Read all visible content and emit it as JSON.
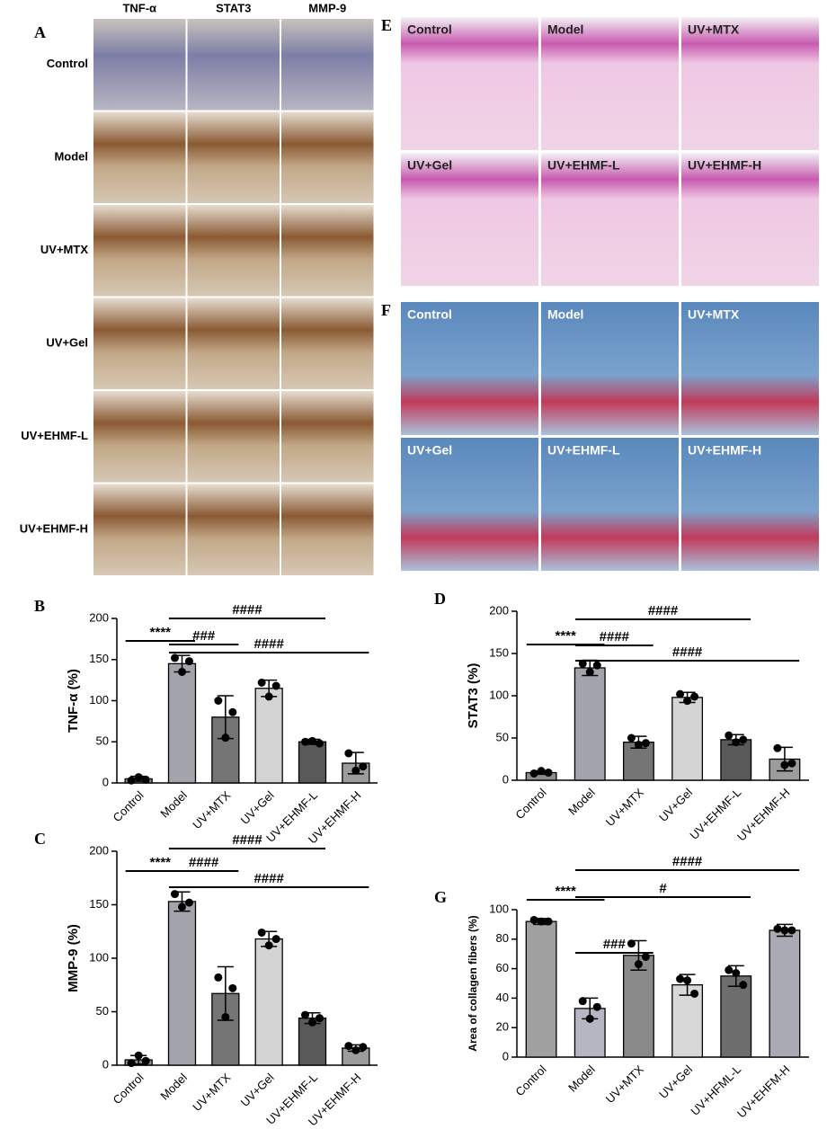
{
  "panels": {
    "A": {
      "label": "A",
      "columns": [
        "TNF-α",
        "STAT3",
        "MMP-9"
      ],
      "rows": [
        "Control",
        "Model",
        "UV+MTX",
        "UV+Gel",
        "UV+EHMF-L",
        "UV+EHMF-H"
      ]
    },
    "E": {
      "label": "E",
      "cells": [
        "Control",
        "Model",
        "UV+MTX",
        "UV+Gel",
        "UV+EHMF-L",
        "UV+EHMF-H"
      ]
    },
    "F": {
      "label": "F",
      "cells": [
        "Control",
        "Model",
        "UV+MTX",
        "UV+Gel",
        "UV+EHMF-L",
        "UV+EHMF-H"
      ]
    }
  },
  "chart_data": [
    {
      "type": "bar",
      "label": "B",
      "y_label": "TNF-α (%)",
      "categories": [
        "Control",
        "Model",
        "UV+MTX",
        "UV+Gel",
        "UV+EHMF-L",
        "UV+EHMF-H"
      ],
      "values": [
        5,
        145,
        80,
        115,
        50,
        24
      ],
      "errors": [
        3,
        10,
        26,
        10,
        3,
        13
      ],
      "points": [
        [
          3,
          7,
          4
        ],
        [
          152,
          135,
          148
        ],
        [
          100,
          55,
          86
        ],
        [
          122,
          105,
          118
        ],
        [
          50,
          51,
          48
        ],
        [
          36,
          15,
          20
        ]
      ],
      "colors": [
        "#8c8c8c",
        "#a3a3ab",
        "#757575",
        "#d4d4d4",
        "#595959",
        "#9c9c9c"
      ],
      "ylim": [
        0,
        200
      ],
      "yticks": [
        0,
        50,
        100,
        150,
        200
      ],
      "annotations": [
        {
          "text": "****",
          "pair": [
            0,
            1
          ]
        },
        {
          "text": "###",
          "pair": [
            1,
            2
          ]
        },
        {
          "text": "####",
          "pair": [
            1,
            4
          ]
        },
        {
          "text": "####",
          "pair": [
            1,
            5
          ]
        }
      ]
    },
    {
      "type": "bar",
      "label": "D",
      "y_label": "STAT3 (%)",
      "categories": [
        "Control",
        "Model",
        "UV+MTX",
        "UV+Gel",
        "UV+EHMF-L",
        "UV+EHMF-H"
      ],
      "values": [
        9,
        133,
        45,
        98,
        48,
        25
      ],
      "errors": [
        2,
        9,
        7,
        6,
        6,
        14
      ],
      "points": [
        [
          8,
          11,
          9
        ],
        [
          138,
          128,
          136
        ],
        [
          50,
          42,
          44
        ],
        [
          102,
          94,
          99
        ],
        [
          53,
          45,
          48
        ],
        [
          38,
          18,
          20
        ]
      ],
      "colors": [
        "#8c8c8c",
        "#a3a3ab",
        "#757575",
        "#d4d4d4",
        "#595959",
        "#9c9c9c"
      ],
      "ylim": [
        0,
        200
      ],
      "yticks": [
        0,
        50,
        100,
        150,
        200
      ],
      "annotations": [
        {
          "text": "****",
          "pair": [
            0,
            1
          ]
        },
        {
          "text": "####",
          "pair": [
            1,
            2
          ]
        },
        {
          "text": "####",
          "pair": [
            1,
            4
          ]
        },
        {
          "text": "####",
          "pair": [
            1,
            5
          ]
        }
      ]
    },
    {
      "type": "bar",
      "label": "C",
      "y_label": "MMP-9  (%)",
      "categories": [
        "Control",
        "Model",
        "UV+MTX",
        "UV+Gel",
        "UV+EHMF-L",
        "UV+EHMF-H"
      ],
      "values": [
        5,
        153,
        67,
        118,
        44,
        16
      ],
      "errors": [
        4,
        9,
        25,
        7,
        5,
        3
      ],
      "points": [
        [
          2,
          9,
          4
        ],
        [
          160,
          148,
          152
        ],
        [
          82,
          45,
          72
        ],
        [
          124,
          112,
          118
        ],
        [
          47,
          40,
          44
        ],
        [
          18,
          14,
          17
        ]
      ],
      "colors": [
        "#8c8c8c",
        "#a3a3ab",
        "#757575",
        "#d4d4d4",
        "#595959",
        "#9c9c9c"
      ],
      "ylim": [
        0,
        200
      ],
      "yticks": [
        0,
        50,
        100,
        150,
        200
      ],
      "annotations": [
        {
          "text": "****",
          "pair": [
            0,
            1
          ]
        },
        {
          "text": "####",
          "pair": [
            1,
            2
          ]
        },
        {
          "text": "####",
          "pair": [
            1,
            4
          ]
        },
        {
          "text": "####",
          "pair": [
            1,
            5
          ]
        }
      ]
    },
    {
      "type": "bar",
      "label": "G",
      "y_label": "Area of collagen fibers (%)",
      "categories": [
        "Control",
        "Model",
        "UV+MTX",
        "UV+Gel",
        "UV+HFML-L",
        "UV+EHFM-H"
      ],
      "values": [
        92,
        33,
        69,
        49,
        55,
        86
      ],
      "errors": [
        2,
        7,
        10,
        7,
        7,
        4
      ],
      "points": [
        [
          93,
          92,
          92
        ],
        [
          38,
          26,
          34
        ],
        [
          77,
          63,
          68
        ],
        [
          53,
          52,
          43
        ],
        [
          59,
          57,
          49
        ],
        [
          87,
          86,
          86
        ]
      ],
      "colors": [
        "#a0a0a0",
        "#b6b6c2",
        "#8a8a8a",
        "#d8d8d8",
        "#6d6d6d",
        "#aaaab4"
      ],
      "ylim": [
        0,
        100
      ],
      "yticks": [
        0,
        20,
        40,
        60,
        80,
        100
      ],
      "annotations": [
        {
          "text": "****",
          "pair": [
            0,
            1
          ]
        },
        {
          "text": "###",
          "pair": [
            1,
            2
          ]
        },
        {
          "text": "#",
          "pair": [
            1,
            4
          ]
        },
        {
          "text": "####",
          "pair": [
            1,
            5
          ]
        }
      ]
    }
  ]
}
